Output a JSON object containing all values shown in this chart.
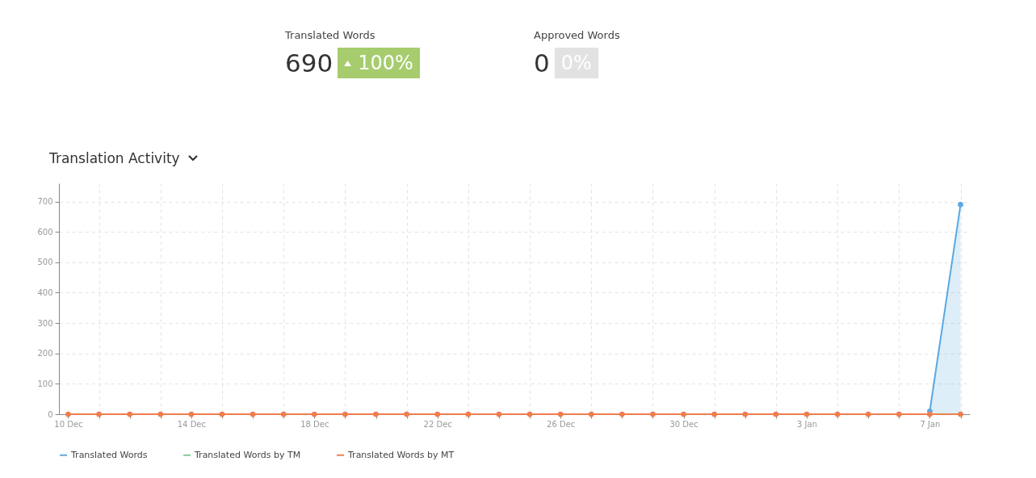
{
  "chart_data": [
    {
      "type": "other",
      "annotations": [
        "Translated Words",
        "690",
        "100%",
        "Approved Words",
        "0",
        "0%"
      ]
    },
    {
      "type": "line",
      "title": "Translation Activity",
      "categories": [
        "10 Dec",
        null,
        null,
        null,
        "14 Dec",
        null,
        null,
        null,
        "18 Dec",
        null,
        null,
        null,
        "22 Dec",
        null,
        null,
        null,
        "26 Dec",
        null,
        null,
        null,
        "30 Dec",
        null,
        null,
        null,
        "3 Jan",
        null,
        null,
        null,
        "7 Jan",
        null
      ],
      "series": [
        {
          "name": "Translated Words",
          "type": "area",
          "color": "#5aa9e2",
          "values": [
            null,
            null,
            null,
            null,
            null,
            null,
            null,
            null,
            null,
            null,
            null,
            null,
            null,
            null,
            null,
            null,
            null,
            null,
            null,
            null,
            null,
            null,
            null,
            null,
            null,
            null,
            null,
            null,
            10,
            690
          ]
        },
        {
          "name": "Translated Words by TM",
          "color": "#7dcc9a",
          "values": [
            null,
            null,
            null,
            null,
            null,
            null,
            null,
            null,
            null,
            null,
            null,
            null,
            null,
            null,
            null,
            null,
            null,
            null,
            null,
            null,
            null,
            null,
            null,
            null,
            null,
            null,
            null,
            null,
            null,
            null
          ]
        },
        {
          "name": "Translated Words by MT",
          "color": "#ef7d4e",
          "values": [
            0,
            0,
            0,
            0,
            0,
            0,
            0,
            0,
            0,
            0,
            0,
            0,
            0,
            0,
            0,
            0,
            0,
            0,
            0,
            0,
            0,
            0,
            0,
            0,
            0,
            0,
            0,
            0,
            0,
            0
          ]
        }
      ],
      "ylim": [
        0,
        760
      ],
      "yticks": [
        0,
        100,
        200,
        300,
        400,
        500,
        600,
        700
      ],
      "grid": true,
      "legend": "bottom",
      "marker": "circle",
      "line_style": "solid"
    }
  ]
}
